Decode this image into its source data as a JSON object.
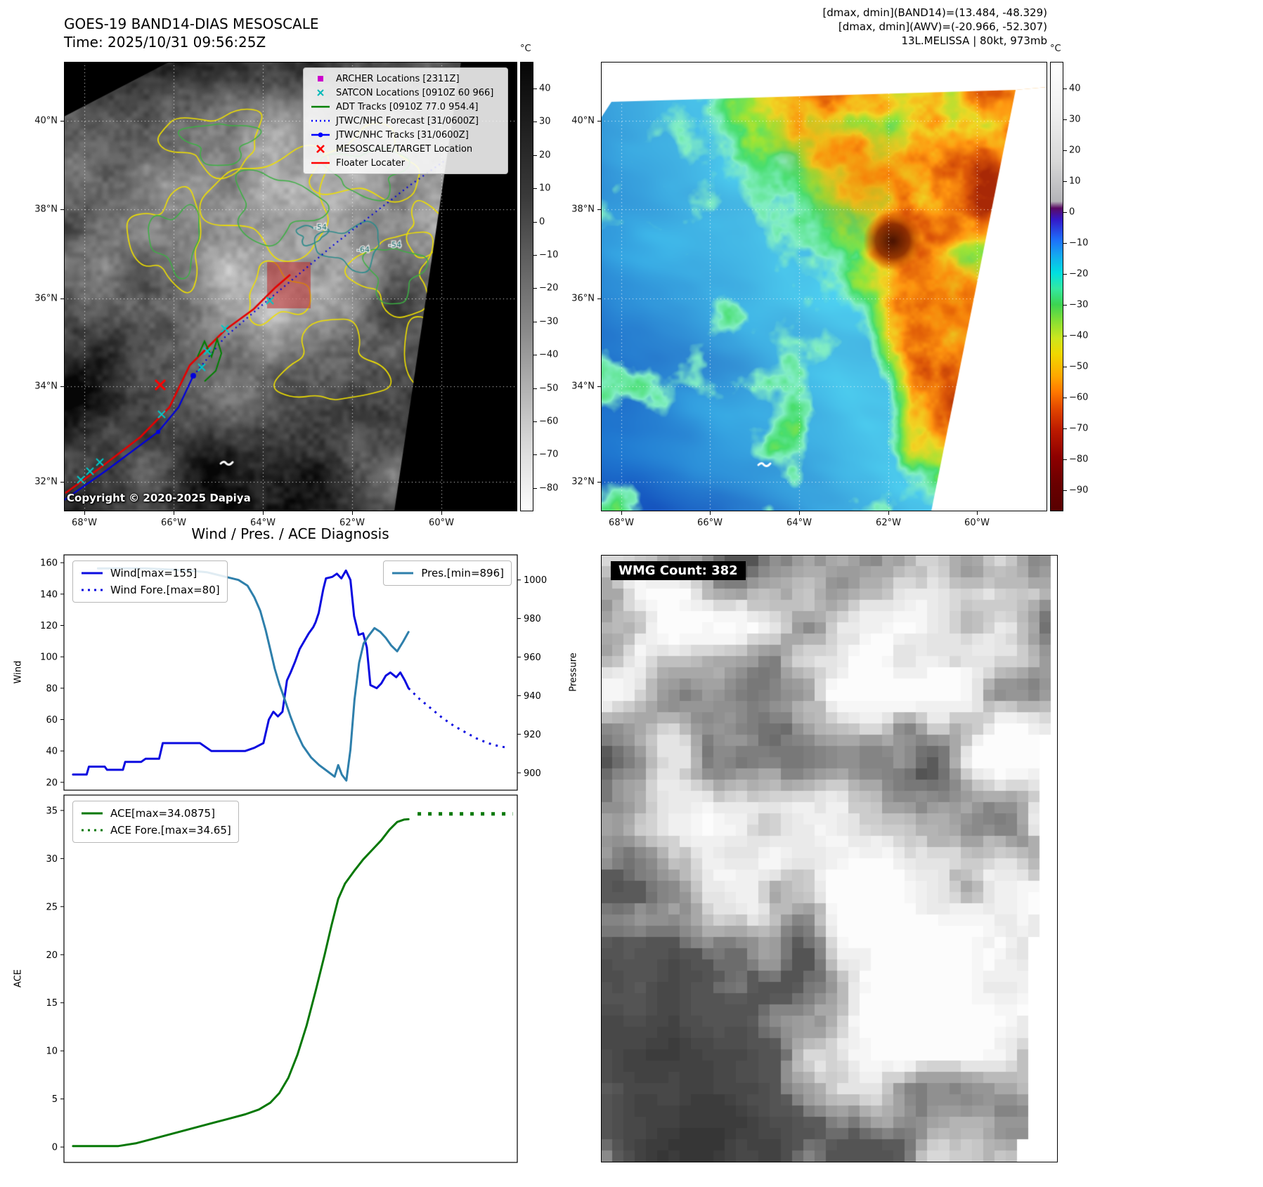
{
  "top_left_map": {
    "title": "GOES-19 BAND14-DIAS MESOSCALE",
    "subtitle": "Time: 2025/10/31 09:56:25Z",
    "copyright": "Copyright © 2020-2025 Dapiya",
    "colorbar_unit": "°C",
    "colorbar_ticks": [
      40,
      30,
      20,
      10,
      0,
      -10,
      -20,
      -30,
      -40,
      -50,
      -60,
      -70,
      -80
    ],
    "lat_labels": [
      "40°N",
      "38°N",
      "36°N",
      "34°N",
      "32°N"
    ],
    "lon_labels": [
      "68°W",
      "66°W",
      "64°W",
      "62°W",
      "60°W"
    ],
    "contour_labels": [
      "-54",
      "-64",
      "-54"
    ],
    "legend": [
      {
        "label": "ARCHER Locations [2311Z]",
        "marker": "square",
        "color": "#cc00cc"
      },
      {
        "label": "SATCON Locations [0910Z 60 966]",
        "marker": "x",
        "color": "#00b8b8"
      },
      {
        "label": "ADT Tracks [0910Z 77.0 954.4]",
        "marker": "line",
        "color": "#008000"
      },
      {
        "label": "JTWC/NHC Forecast [31/0600Z]",
        "marker": "dotted",
        "color": "#0000ff"
      },
      {
        "label": "JTWC/NHC Tracks [31/0600Z]",
        "marker": "line-dot",
        "color": "#0000ff"
      },
      {
        "label": "MESOSCALE/TARGET Location",
        "marker": "X",
        "color": "#ff0000"
      },
      {
        "label": "Floater Locater",
        "marker": "line",
        "color": "#ff0000"
      }
    ]
  },
  "top_right_map": {
    "info_line1": "[dmax, dmin](BAND14)=(13.484, -48.329)",
    "info_line2": "[dmax, dmin](AWV)=(-20.966, -52.307)",
    "info_line3": "13L.MELISSA | 80kt, 973mb",
    "colorbar_unit": "°C",
    "colorbar_ticks": [
      40,
      30,
      20,
      10,
      0,
      -10,
      -20,
      -30,
      -40,
      -50,
      -60,
      -70,
      -80,
      -90
    ],
    "lat_labels": [
      "40°N",
      "38°N",
      "36°N",
      "34°N",
      "32°N"
    ],
    "lon_labels": [
      "68°W",
      "66°W",
      "64°W",
      "62°W",
      "60°W"
    ]
  },
  "charts": {
    "title": "Wind / Pres. / ACE Diagnosis"
  },
  "chart_data": [
    {
      "type": "line",
      "title": "Wind / Pres. / ACE Diagnosis",
      "xlabel": "",
      "ylabel_left": "Wind",
      "ylabel_right": "Pressure",
      "ylim_left": [
        15,
        165
      ],
      "ylim_right": [
        891,
        1013
      ],
      "yticks_left": [
        20,
        40,
        60,
        80,
        100,
        120,
        140,
        160
      ],
      "yticks_right": [
        900,
        920,
        940,
        960,
        980,
        1000
      ],
      "x_range": [
        0,
        1
      ],
      "grid": false,
      "series": [
        {
          "name": "Wind[max=155]",
          "key": "wind",
          "axis": "left",
          "style": "solid",
          "color": "#0b0be0",
          "width": 3,
          "points": [
            [
              0.02,
              25
            ],
            [
              0.05,
              25
            ],
            [
              0.055,
              30
            ],
            [
              0.09,
              30
            ],
            [
              0.095,
              28
            ],
            [
              0.13,
              28
            ],
            [
              0.135,
              33
            ],
            [
              0.17,
              33
            ],
            [
              0.18,
              35
            ],
            [
              0.21,
              35
            ],
            [
              0.218,
              45
            ],
            [
              0.26,
              45
            ],
            [
              0.3,
              45
            ],
            [
              0.325,
              40
            ],
            [
              0.4,
              40
            ],
            [
              0.42,
              42
            ],
            [
              0.44,
              45
            ],
            [
              0.452,
              60
            ],
            [
              0.462,
              65
            ],
            [
              0.472,
              62
            ],
            [
              0.482,
              65
            ],
            [
              0.492,
              85
            ],
            [
              0.5,
              90
            ],
            [
              0.51,
              97
            ],
            [
              0.52,
              105
            ],
            [
              0.53,
              110
            ],
            [
              0.54,
              115
            ],
            [
              0.55,
              119
            ],
            [
              0.555,
              122
            ],
            [
              0.562,
              128
            ],
            [
              0.572,
              143
            ],
            [
              0.578,
              150
            ],
            [
              0.592,
              151
            ],
            [
              0.602,
              153
            ],
            [
              0.612,
              150
            ],
            [
              0.622,
              155
            ],
            [
              0.632,
              149
            ],
            [
              0.64,
              126
            ],
            [
              0.65,
              114
            ],
            [
              0.66,
              115
            ],
            [
              0.668,
              106
            ],
            [
              0.676,
              82
            ],
            [
              0.69,
              80
            ],
            [
              0.7,
              83
            ],
            [
              0.71,
              88
            ],
            [
              0.72,
              90
            ],
            [
              0.733,
              87
            ],
            [
              0.742,
              90
            ],
            [
              0.752,
              85
            ],
            [
              0.76,
              80
            ]
          ]
        },
        {
          "name": "Wind Fore.[max=80]",
          "key": "wind-forecast",
          "axis": "left",
          "style": "dotted",
          "color": "#0b0be0",
          "width": 3,
          "dash": "3 7",
          "points": [
            [
              0.76,
              80
            ],
            [
              0.785,
              73
            ],
            [
              0.81,
              67
            ],
            [
              0.835,
              61
            ],
            [
              0.86,
              56
            ],
            [
              0.885,
              52
            ],
            [
              0.91,
              48
            ],
            [
              0.935,
              45
            ],
            [
              0.96,
              43
            ],
            [
              0.98,
              42
            ]
          ]
        },
        {
          "name": "Pres.[min=896]",
          "key": "pressure",
          "axis": "right",
          "style": "solid",
          "color": "#2e7fab",
          "width": 3,
          "points": [
            [
              0.075,
              1006
            ],
            [
              0.18,
              1006
            ],
            [
              0.27,
              1005
            ],
            [
              0.315,
              1004
            ],
            [
              0.35,
              1002
            ],
            [
              0.385,
              1000
            ],
            [
              0.405,
              997
            ],
            [
              0.42,
              991
            ],
            [
              0.433,
              984
            ],
            [
              0.445,
              974
            ],
            [
              0.455,
              964
            ],
            [
              0.465,
              954
            ],
            [
              0.475,
              946
            ],
            [
              0.487,
              938
            ],
            [
              0.5,
              929
            ],
            [
              0.513,
              921
            ],
            [
              0.527,
              914
            ],
            [
              0.545,
              908
            ],
            [
              0.563,
              904
            ],
            [
              0.58,
              901
            ],
            [
              0.597,
              898
            ],
            [
              0.605,
              904
            ],
            [
              0.613,
              899
            ],
            [
              0.623,
              896
            ],
            [
              0.632,
              912
            ],
            [
              0.641,
              938
            ],
            [
              0.651,
              957
            ],
            [
              0.661,
              967
            ],
            [
              0.672,
              971
            ],
            [
              0.685,
              975
            ],
            [
              0.698,
              973
            ],
            [
              0.71,
              970
            ],
            [
              0.722,
              966
            ],
            [
              0.735,
              963
            ],
            [
              0.748,
              968
            ],
            [
              0.76,
              973
            ]
          ]
        }
      ]
    },
    {
      "type": "line",
      "title": "",
      "xlabel": "",
      "ylabel_left": "ACE",
      "ylim_left": [
        -1.6,
        36.6
      ],
      "yticks_left": [
        0,
        5,
        10,
        15,
        20,
        25,
        30,
        35
      ],
      "x_range": [
        0,
        1
      ],
      "grid": false,
      "series": [
        {
          "name": "ACE[max=34.0875]",
          "key": "ace",
          "axis": "left",
          "style": "solid",
          "color": "#067806",
          "width": 3,
          "points": [
            [
              0.02,
              0.1
            ],
            [
              0.12,
              0.1
            ],
            [
              0.16,
              0.4
            ],
            [
              0.2,
              0.9
            ],
            [
              0.24,
              1.4
            ],
            [
              0.28,
              1.9
            ],
            [
              0.32,
              2.4
            ],
            [
              0.36,
              2.9
            ],
            [
              0.4,
              3.4
            ],
            [
              0.43,
              3.9
            ],
            [
              0.455,
              4.6
            ],
            [
              0.475,
              5.6
            ],
            [
              0.495,
              7.2
            ],
            [
              0.515,
              9.6
            ],
            [
              0.535,
              12.6
            ],
            [
              0.555,
              16.2
            ],
            [
              0.575,
              20.0
            ],
            [
              0.59,
              23.0
            ],
            [
              0.605,
              25.8
            ],
            [
              0.62,
              27.4
            ],
            [
              0.64,
              28.7
            ],
            [
              0.66,
              29.9
            ],
            [
              0.68,
              30.9
            ],
            [
              0.7,
              31.9
            ],
            [
              0.718,
              33.0
            ],
            [
              0.735,
              33.8
            ],
            [
              0.75,
              34.05
            ],
            [
              0.76,
              34.09
            ]
          ]
        },
        {
          "name": "ACE Fore.[max=34.65]",
          "key": "ace-forecast",
          "axis": "left",
          "style": "dotted",
          "color": "#067806",
          "width": 5,
          "dash": "5 10",
          "points": [
            [
              0.78,
              34.65
            ],
            [
              0.99,
              34.65
            ]
          ]
        }
      ]
    }
  ],
  "wmg": {
    "count_label": "WMG Count: 382"
  }
}
